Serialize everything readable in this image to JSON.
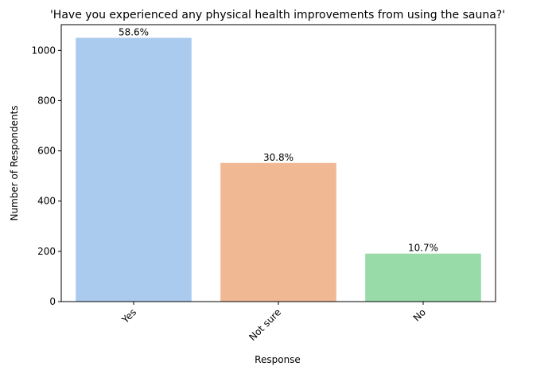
{
  "chart_data": {
    "type": "bar",
    "title": "'Have you experienced any physical health improvements from using the sauna?'",
    "x_label": "Response",
    "y_label": "Number of Respondents",
    "categories": [
      "Yes",
      "Not sure",
      "No"
    ],
    "values": [
      1050,
      552,
      191
    ],
    "percent_labels": [
      {
        "value": 58.6,
        "label": "58.6%"
      },
      {
        "value": 30.8,
        "label": "30.8%"
      },
      {
        "value": 10.7,
        "label": "10.7%"
      }
    ],
    "colors": [
      "#abcbee",
      "#f0b994",
      "#99dba8"
    ],
    "ylim": [
      0,
      1102.5
    ],
    "yticks": [
      0,
      200,
      400,
      600,
      800,
      1000
    ]
  }
}
